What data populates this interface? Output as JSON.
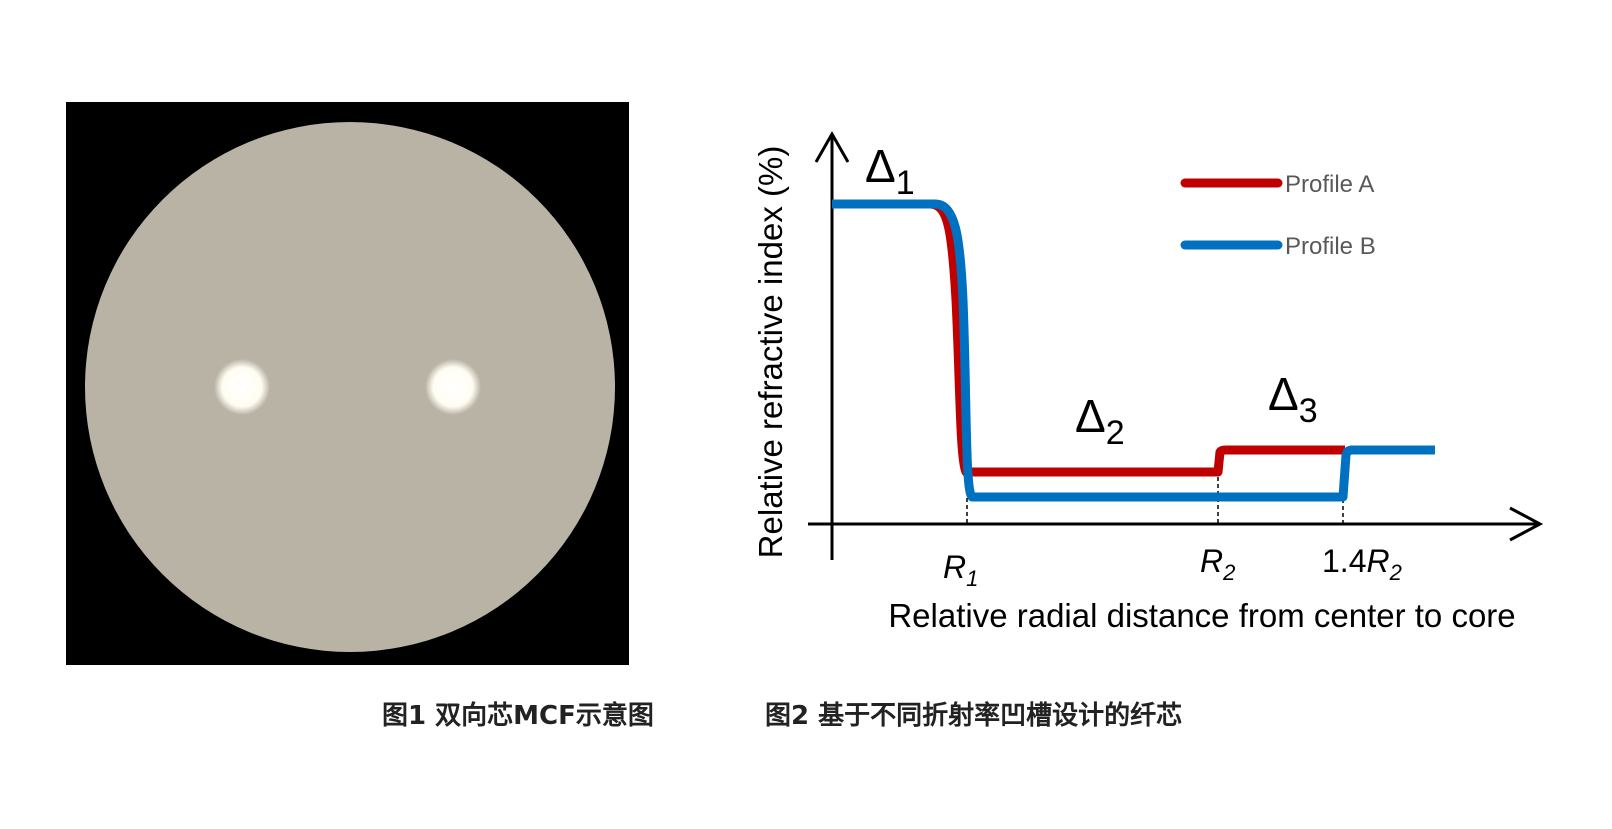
{
  "figure1": {
    "caption": "图1 双向芯MCF示意图"
  },
  "figure2": {
    "caption": "图2 基于不同折射率凹槽设计的纤芯",
    "y_axis_label": "Relative refractive index (%)",
    "x_axis_label": "Relative radial distance from center to core",
    "deltas": [
      {
        "symbol": "Δ",
        "subscript": "1"
      },
      {
        "symbol": "Δ",
        "subscript": "2"
      },
      {
        "symbol": "Δ",
        "subscript": "3"
      }
    ],
    "radii": [
      {
        "symbol": "R",
        "subscript": "1"
      },
      {
        "symbol": "R",
        "subscript": "2"
      },
      {
        "coefficient": "1.4",
        "symbol": "R",
        "subscript": "2"
      }
    ],
    "legend": [
      {
        "name": "Profile A",
        "color": "#c00000"
      },
      {
        "name": "Profile B",
        "color": "#0070c0"
      }
    ]
  }
}
